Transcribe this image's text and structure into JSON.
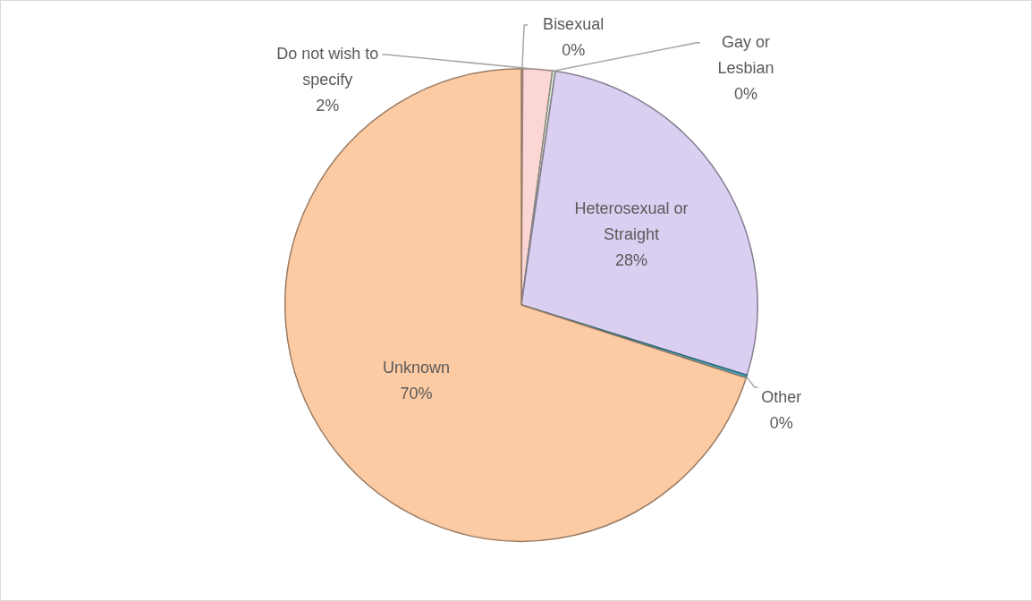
{
  "chart_data": {
    "type": "pie",
    "categories": [
      "Bisexual",
      "Do not wish to specify",
      "Gay or Lesbian",
      "Heterosexual or Straight",
      "Other",
      "Unknown"
    ],
    "values": [
      0.1,
      2.0,
      0.2,
      27.5,
      0.2,
      70.0
    ],
    "value_labels": [
      "0%",
      "2%",
      "0%",
      "28%",
      "0%",
      "70%"
    ],
    "colors": [
      "#dce6f2",
      "#fcd5d5",
      "#e3efd6",
      "#dacff0",
      "#4bacc6",
      "#fdcba3"
    ],
    "legend": false
  }
}
